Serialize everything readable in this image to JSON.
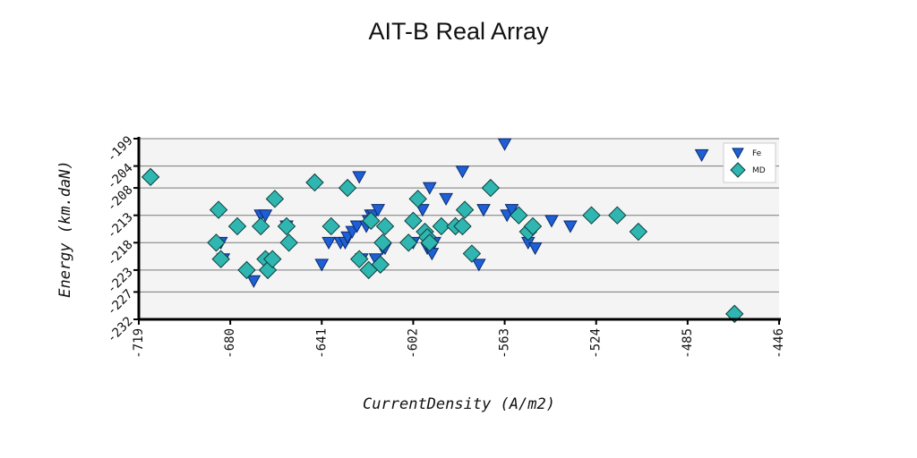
{
  "chart_data": {
    "type": "scatter",
    "title": "AIT-B Real Array",
    "xlabel": "CurrentDensity (A/m2)",
    "ylabel": "Energy (km.daN)",
    "xlim": [
      -719,
      -446
    ],
    "ylim": [
      -232,
      -199
    ],
    "xticks": [
      -719,
      -680,
      -641,
      -602,
      -563,
      -524,
      -485,
      -446
    ],
    "yticks": [
      -199,
      -204,
      -208,
      -213,
      -218,
      -223,
      -227,
      -232
    ],
    "grid": "horizontal",
    "legend_position": "top-right",
    "series": [
      {
        "name": "Fe",
        "marker": "triangle-down",
        "color": "#1f5fd6",
        "points": [
          [
            -684,
            -218
          ],
          [
            -683,
            -221
          ],
          [
            -670,
            -225
          ],
          [
            -667,
            -213
          ],
          [
            -665,
            -213
          ],
          [
            -656,
            -215
          ],
          [
            -641,
            -222
          ],
          [
            -638,
            -218
          ],
          [
            -633,
            -218
          ],
          [
            -631,
            -218
          ],
          [
            -630,
            -217
          ],
          [
            -628,
            -216
          ],
          [
            -626,
            -215
          ],
          [
            -625,
            -206
          ],
          [
            -624,
            -221
          ],
          [
            -622,
            -215
          ],
          [
            -621,
            -214
          ],
          [
            -620,
            -213
          ],
          [
            -619,
            -213
          ],
          [
            -618,
            -221
          ],
          [
            -617,
            -212
          ],
          [
            -615,
            -219
          ],
          [
            -614,
            -219
          ],
          [
            -602,
            -218
          ],
          [
            -598,
            -212
          ],
          [
            -596,
            -219
          ],
          [
            -595,
            -208
          ],
          [
            -594,
            -220
          ],
          [
            -593,
            -218
          ],
          [
            -588,
            -210
          ],
          [
            -581,
            -205
          ],
          [
            -574,
            -222
          ],
          [
            -572,
            -212
          ],
          [
            -563,
            -200
          ],
          [
            -562,
            -213
          ],
          [
            -560,
            -212
          ],
          [
            -553,
            -218
          ],
          [
            -550,
            -219
          ],
          [
            -543,
            -214
          ],
          [
            -535,
            -215
          ],
          [
            -479,
            -202
          ]
        ]
      },
      {
        "name": "MD",
        "marker": "diamond",
        "color": "#2fb6b0",
        "points": [
          [
            -714,
            -206
          ],
          [
            -686,
            -218
          ],
          [
            -685,
            -212
          ],
          [
            -684,
            -221
          ],
          [
            -677,
            -215
          ],
          [
            -673,
            -223
          ],
          [
            -667,
            -215
          ],
          [
            -665,
            -221
          ],
          [
            -664,
            -223
          ],
          [
            -662,
            -221
          ],
          [
            -661,
            -210
          ],
          [
            -656,
            -215
          ],
          [
            -655,
            -218
          ],
          [
            -644,
            -207
          ],
          [
            -637,
            -215
          ],
          [
            -630,
            -208
          ],
          [
            -625,
            -221
          ],
          [
            -621,
            -223
          ],
          [
            -620,
            -214
          ],
          [
            -616,
            -222
          ],
          [
            -615,
            -218
          ],
          [
            -614,
            -215
          ],
          [
            -604,
            -218
          ],
          [
            -602,
            -214
          ],
          [
            -600,
            -210
          ],
          [
            -597,
            -216
          ],
          [
            -596,
            -217
          ],
          [
            -595,
            -218
          ],
          [
            -590,
            -215
          ],
          [
            -584,
            -215
          ],
          [
            -581,
            -215
          ],
          [
            -580,
            -212
          ],
          [
            -577,
            -220
          ],
          [
            -569,
            -208
          ],
          [
            -557,
            -213
          ],
          [
            -553,
            -216
          ],
          [
            -551,
            -215
          ],
          [
            -526,
            -213
          ],
          [
            -515,
            -213
          ],
          [
            -506,
            -216
          ],
          [
            -465,
            -231
          ]
        ]
      }
    ]
  }
}
